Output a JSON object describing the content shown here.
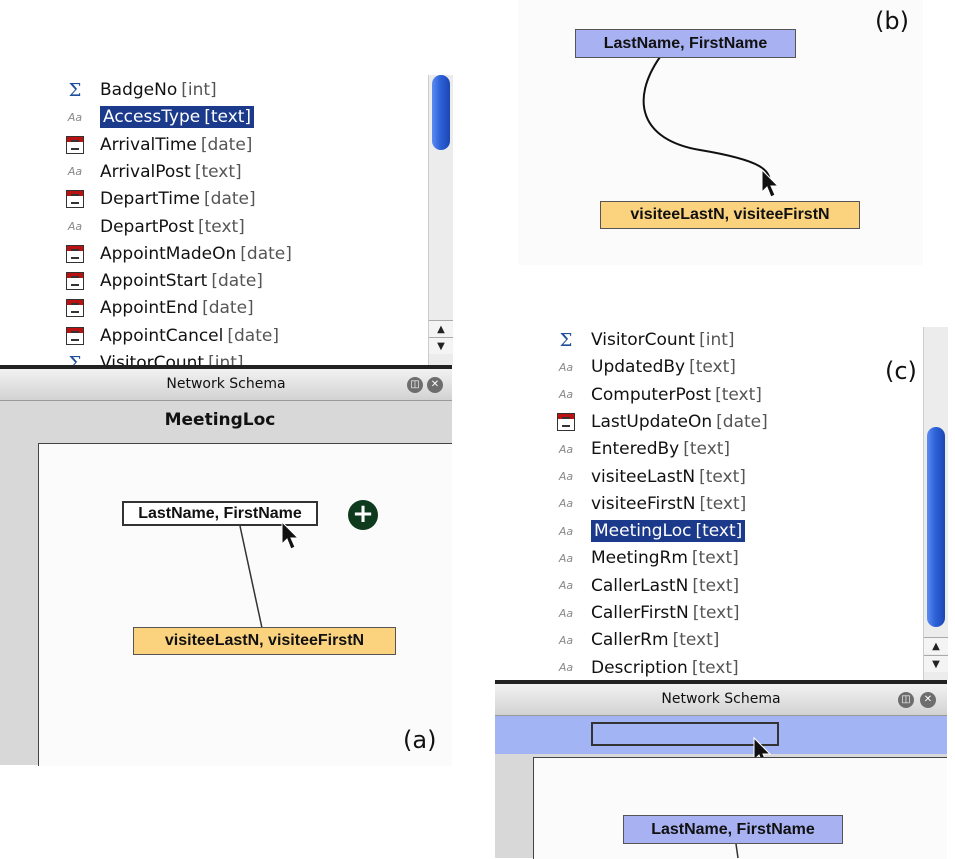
{
  "panel_a": {
    "label": "(a)",
    "fields": [
      {
        "icon": "sigma-icon",
        "name": "BadgeNo",
        "type": "[int]",
        "selected": false
      },
      {
        "icon": "text-icon",
        "name": "AccessType",
        "type": "[text]",
        "selected": true
      },
      {
        "icon": "calendar-icon",
        "name": "ArrivalTime",
        "type": "[date]",
        "selected": false
      },
      {
        "icon": "text-icon",
        "name": "ArrivalPost",
        "type": "[text]",
        "selected": false
      },
      {
        "icon": "calendar-icon",
        "name": "DepartTime",
        "type": "[date]",
        "selected": false
      },
      {
        "icon": "text-icon",
        "name": "DepartPost",
        "type": "[text]",
        "selected": false
      },
      {
        "icon": "calendar-icon",
        "name": "AppointMadeOn",
        "type": "[date]",
        "selected": false
      },
      {
        "icon": "calendar-icon",
        "name": "AppointStart",
        "type": "[date]",
        "selected": false
      },
      {
        "icon": "calendar-icon",
        "name": "AppointEnd",
        "type": "[date]",
        "selected": false
      },
      {
        "icon": "calendar-icon",
        "name": "AppointCancel",
        "type": "[date]",
        "selected": false
      },
      {
        "icon": "sigma-icon",
        "name": "VisitorCount",
        "type": "[int]",
        "selected": false
      }
    ],
    "panel_title": "Network Schema",
    "schema_name": "MeetingLoc",
    "node_source": "LastName, FirstName",
    "node_target": "visiteeLastN, visiteeFirstN"
  },
  "panel_b": {
    "label": "(b)",
    "node_source": "LastName, FirstName",
    "node_target": "visiteeLastN, visiteeFirstN"
  },
  "panel_c": {
    "label": "(c)",
    "fields": [
      {
        "icon": "sigma-icon",
        "name": "VisitorCount",
        "type": "[int]",
        "selected": false
      },
      {
        "icon": "text-icon",
        "name": "UpdatedBy",
        "type": "[text]",
        "selected": false
      },
      {
        "icon": "text-icon",
        "name": "ComputerPost",
        "type": "[text]",
        "selected": false
      },
      {
        "icon": "calendar-icon",
        "name": "LastUpdateOn",
        "type": "[date]",
        "selected": false
      },
      {
        "icon": "text-icon",
        "name": "EnteredBy",
        "type": "[text]",
        "selected": false
      },
      {
        "icon": "text-icon",
        "name": "visiteeLastN",
        "type": "[text]",
        "selected": false
      },
      {
        "icon": "text-icon",
        "name": "visiteeFirstN",
        "type": "[text]",
        "selected": false
      },
      {
        "icon": "text-icon",
        "name": "MeetingLoc",
        "type": "[text]",
        "selected": true
      },
      {
        "icon": "text-icon",
        "name": "MeetingRm",
        "type": "[text]",
        "selected": false
      },
      {
        "icon": "text-icon",
        "name": "CallerLastN",
        "type": "[text]",
        "selected": false
      },
      {
        "icon": "text-icon",
        "name": "CallerFirstN",
        "type": "[text]",
        "selected": false
      },
      {
        "icon": "text-icon",
        "name": "CallerRm",
        "type": "[text]",
        "selected": false
      },
      {
        "icon": "text-icon",
        "name": "Description",
        "type": "[text]",
        "selected": false
      }
    ],
    "panel_title": "Network Schema",
    "node_source": "LastName, FirstName"
  },
  "glyphs": {
    "sigma": "Σ",
    "text": "Aa",
    "up": "▲",
    "down": "▼",
    "plus": "+",
    "ctrl_a": "◫",
    "ctrl_b": "✕"
  },
  "colors": {
    "selection": "#1c3a8c",
    "node_blue": "#a8b1f2",
    "node_orange": "#fbd37f",
    "schema_drop_bar": "#a3b4f4"
  }
}
